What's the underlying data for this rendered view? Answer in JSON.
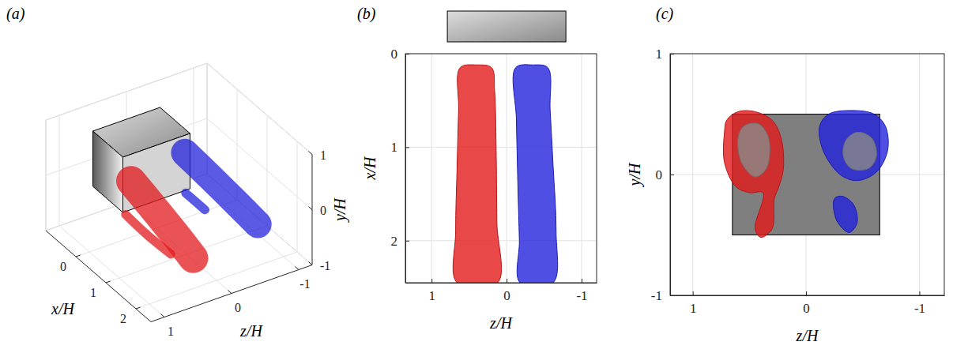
{
  "chart_data": [
    {
      "type": "isosurface-3d",
      "label": "(a)",
      "xlabel": "x/H",
      "ylabel": "y/H",
      "zlabel": "z/H",
      "xlim": [
        -1,
        2.5
      ],
      "xticks": [
        0,
        1,
        2
      ],
      "zlim": [
        -1.2,
        1.2
      ],
      "zticks": [
        -1,
        0,
        1
      ],
      "ylim": [
        -1,
        1
      ],
      "yticks": [
        -1,
        0,
        1
      ],
      "grid": true,
      "series": [
        {
          "color": "#2323dc",
          "x": [
            0.05,
            0.8,
            1.6,
            2.3
          ],
          "z": [
            -0.4,
            -0.42,
            -0.45,
            -0.48
          ],
          "values": [
            0.22,
            0.15,
            0.05,
            -0.05
          ],
          "radius": 0.25
        },
        {
          "color": "#2323dc",
          "x": [
            0.3,
            0.9
          ],
          "z": [
            -0.3,
            -0.32
          ],
          "values": [
            -0.35,
            -0.38
          ],
          "radius": 0.08
        },
        {
          "color": "#e31a1c",
          "x": [
            0.2,
            0.9,
            1.6
          ],
          "z": [
            0.55,
            0.55,
            0.5
          ],
          "values": [
            -0.42,
            -0.45,
            -0.5
          ],
          "radius": 0.08
        },
        {
          "color": "#e31a1c",
          "x": [
            0.05,
            0.8,
            1.6,
            2.3
          ],
          "z": [
            0.4,
            0.42,
            0.45,
            0.48
          ],
          "values": [
            0.05,
            -0.05,
            -0.15,
            -0.25
          ],
          "radius": 0.27
        }
      ]
    },
    {
      "type": "isosurface-top",
      "label": "(b)",
      "xlabel": "z/H",
      "ylabel": "x/H",
      "xlim": [
        1.35,
        -1.2
      ],
      "xticks": [
        1,
        0,
        -1
      ],
      "ylim": [
        0,
        2.45
      ],
      "yticks": [
        0,
        1,
        2
      ],
      "grid": true,
      "series": [
        {
          "color": "#e31a1c",
          "x": [
            0.62,
            0.64,
            0.66,
            0.68,
            0.66,
            0.12,
            0.13,
            0.14,
            0.16,
            0.2,
            0.4
          ],
          "values": [
            0.15,
            0.6,
            1.2,
            1.9,
            2.45,
            2.45,
            1.8,
            1.0,
            0.4,
            0.15,
            0.12
          ]
        },
        {
          "color": "#2323dc",
          "x": [
            -0.12,
            -0.13,
            -0.15,
            -0.17,
            -0.18,
            -0.62,
            -0.66,
            -0.62,
            -0.58,
            -0.55,
            -0.35
          ],
          "values": [
            0.15,
            0.7,
            1.4,
            2.0,
            2.45,
            2.45,
            1.9,
            1.2,
            0.6,
            0.15,
            0.12
          ]
        }
      ]
    },
    {
      "type": "isosurface-section",
      "label": "(c)",
      "xlabel": "z/H",
      "ylabel": "y/H",
      "xlim": [
        1.2,
        -1.22
      ],
      "xticks": [
        1,
        0,
        -1
      ],
      "ylim": [
        -1,
        1
      ],
      "yticks": [
        -1,
        0,
        1
      ],
      "grid": true,
      "series": [
        {
          "color": "#e31a1c",
          "x": [
            0.72,
            0.7,
            0.6,
            0.45,
            0.3,
            0.22,
            0.2,
            0.24,
            0.28,
            0.3,
            0.4,
            0.45,
            0.38,
            0.5,
            0.62,
            0.72
          ],
          "values": [
            0.35,
            0.45,
            0.52,
            0.52,
            0.45,
            0.3,
            0.05,
            -0.1,
            -0.2,
            -0.45,
            -0.52,
            -0.45,
            -0.15,
            -0.15,
            -0.1,
            0.1
          ]
        },
        {
          "color": "#8a8a8a",
          "x": [
            0.6,
            0.55,
            0.42,
            0.33,
            0.35,
            0.45,
            0.57
          ],
          "values": [
            0.3,
            0.4,
            0.42,
            0.3,
            0.05,
            -0.02,
            0.1
          ]
        },
        {
          "color": "#2323dc",
          "x": [
            -0.12,
            -0.2,
            -0.4,
            -0.6,
            -0.7,
            -0.72,
            -0.62,
            -0.45,
            -0.3,
            -0.15
          ],
          "values": [
            0.4,
            0.5,
            0.53,
            0.5,
            0.4,
            0.2,
            0.02,
            -0.05,
            0.0,
            0.2
          ]
        },
        {
          "color": "#8a8a8a",
          "x": [
            -0.35,
            -0.45,
            -0.58,
            -0.62,
            -0.55,
            -0.4,
            -0.33
          ],
          "values": [
            0.28,
            0.35,
            0.3,
            0.15,
            0.05,
            0.05,
            0.15
          ]
        },
        {
          "color": "#2323dc",
          "x": [
            -0.25,
            -0.32,
            -0.42,
            -0.45,
            -0.38,
            -0.27
          ],
          "values": [
            -0.2,
            -0.18,
            -0.25,
            -0.4,
            -0.48,
            -0.38
          ]
        }
      ]
    }
  ]
}
